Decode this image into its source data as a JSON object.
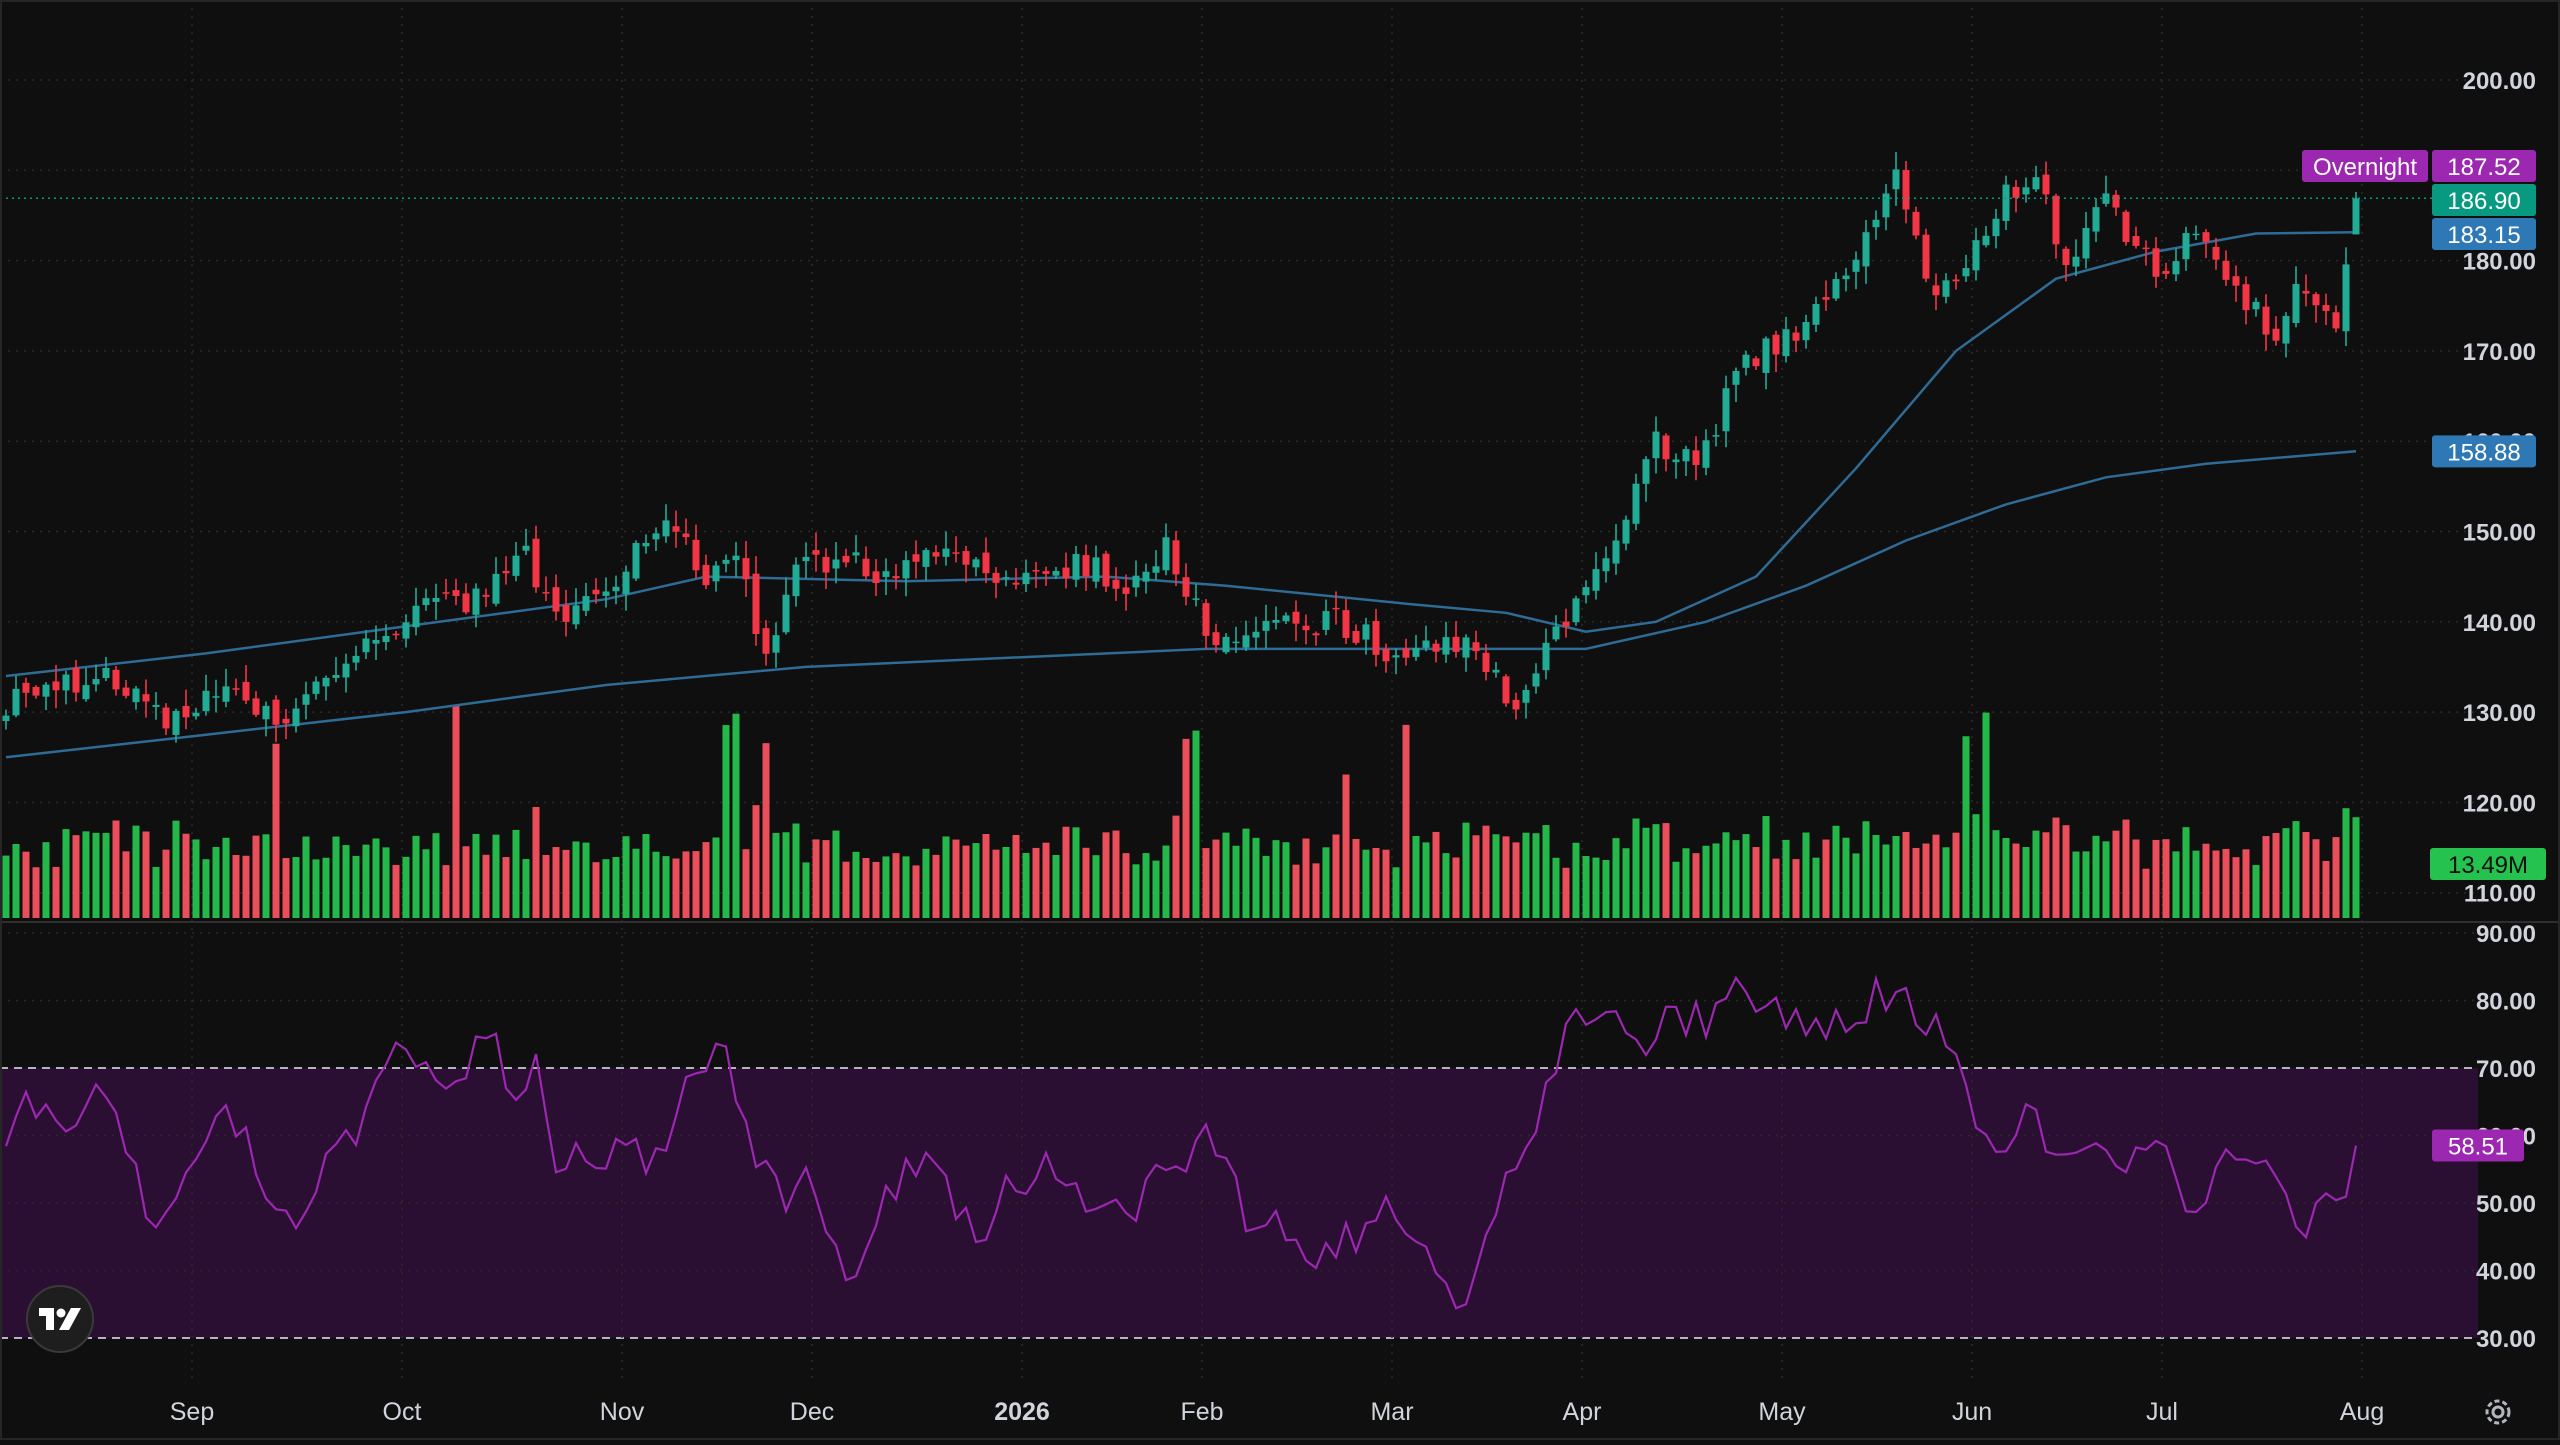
{
  "colors": {
    "background": "#0f0f0f",
    "grid": "#2a2a2a",
    "up": "#22ab94",
    "down": "#f23645",
    "volume_up": "#26c24f",
    "volume_down": "#f7525f",
    "ma_line": "#2e6b95",
    "rsi_line": "#9c27b0",
    "rsi_band": "#2a0f33",
    "axis_text": "#d1d4dc",
    "overnight_badge": "#9c27b0",
    "last_price_badge": "#089981",
    "ma_badge": "#2e79b5",
    "volume_badge": "#26c24f",
    "rsi_badge": "#9c27b0"
  },
  "icons": {
    "logo": "tradingview-logo-icon",
    "settings": "gear-icon"
  },
  "labels": {
    "overnight_tag": "Overnight",
    "overnight_price": "187.52",
    "last_price": "186.90",
    "ma_fast_value": "183.15",
    "ma_slow_value": "158.88",
    "volume_value": "13.49M",
    "rsi_value": "58.51"
  },
  "chart_data": [
    {
      "type": "candlestick",
      "date_range": [
        "2025-08-01",
        "2026-08-03"
      ],
      "x_ticks": [
        "Sep",
        "Oct",
        "Nov",
        "Dec",
        "2026",
        "Feb",
        "Mar",
        "Apr",
        "May",
        "Jun",
        "Jul",
        "Aug"
      ],
      "ylim": [
        105,
        205
      ],
      "y_ticks": [
        "110.00",
        "120.00",
        "130.00",
        "140.00",
        "150.00",
        "160.00",
        "170.00",
        "180.00",
        "190.00",
        "200.00"
      ],
      "grid": true,
      "close_anchors": [
        [
          0,
          131
        ],
        [
          8,
          134
        ],
        [
          12,
          133
        ],
        [
          16,
          129
        ],
        [
          22,
          132
        ],
        [
          28,
          129
        ],
        [
          34,
          135
        ],
        [
          40,
          141
        ],
        [
          46,
          142
        ],
        [
          52,
          147
        ],
        [
          56,
          140
        ],
        [
          61,
          144
        ],
        [
          66,
          152
        ],
        [
          70,
          145
        ],
        [
          73,
          148
        ],
        [
          76,
          136
        ],
        [
          79,
          146
        ],
        [
          84,
          147
        ],
        [
          89,
          145
        ],
        [
          94,
          148
        ],
        [
          100,
          145
        ],
        [
          104,
          146
        ],
        [
          108,
          146
        ],
        [
          113,
          144
        ],
        [
          116,
          148
        ],
        [
          120,
          139
        ],
        [
          125,
          139
        ],
        [
          129,
          140
        ],
        [
          133,
          140
        ],
        [
          138,
          137
        ],
        [
          142,
          138
        ],
        [
          147,
          137
        ],
        [
          151,
          131
        ],
        [
          156,
          140
        ],
        [
          161,
          150
        ],
        [
          165,
          160
        ],
        [
          169,
          157
        ],
        [
          173,
          167
        ],
        [
          177,
          171
        ],
        [
          181,
          174
        ],
        [
          185,
          180
        ],
        [
          189,
          190
        ],
        [
          193,
          175
        ],
        [
          197,
          181
        ],
        [
          200,
          188
        ],
        [
          203,
          189
        ],
        [
          206,
          180
        ],
        [
          210,
          187
        ],
        [
          215,
          178
        ],
        [
          219,
          183
        ],
        [
          223,
          176
        ],
        [
          227,
          172
        ],
        [
          229,
          176
        ],
        [
          231,
          176
        ],
        [
          233,
          172
        ],
        [
          235,
          186.9
        ]
      ],
      "series": [
        {
          "name": "183.15",
          "kind": "moving-average",
          "points": [
            [
              0,
              134
            ],
            [
              20,
              136.5
            ],
            [
              40,
              139.5
            ],
            [
              60,
              142.5
            ],
            [
              70,
              145
            ],
            [
              90,
              144.5
            ],
            [
              110,
              145
            ],
            [
              122,
              144
            ],
            [
              140,
              142
            ],
            [
              150,
              141
            ],
            [
              158,
              138.9
            ],
            [
              165,
              140
            ],
            [
              175,
              145
            ],
            [
              185,
              157
            ],
            [
              195,
              170
            ],
            [
              205,
              178
            ],
            [
              215,
              181
            ],
            [
              225,
              183
            ],
            [
              235,
              183.15
            ]
          ]
        },
        {
          "name": "158.88",
          "kind": "moving-average",
          "points": [
            [
              0,
              125
            ],
            [
              20,
              127.5
            ],
            [
              40,
              130
            ],
            [
              60,
              133
            ],
            [
              80,
              135
            ],
            [
              100,
              136
            ],
            [
              120,
              137
            ],
            [
              140,
              137
            ],
            [
              158,
              137
            ],
            [
              170,
              140
            ],
            [
              180,
              144
            ],
            [
              190,
              149
            ],
            [
              200,
              153
            ],
            [
              210,
              156
            ],
            [
              220,
              157.5
            ],
            [
              235,
              158.88
            ]
          ]
        },
        {
          "name": "Volume",
          "kind": "volume",
          "last": "13.49M"
        }
      ]
    },
    {
      "type": "line",
      "indicator": "RSI",
      "ylim": [
        29,
        91
      ],
      "y_ticks": [
        "30.00",
        "40.00",
        "50.00",
        "60.00",
        "70.00",
        "80.00",
        "90.00"
      ],
      "bands": [
        30,
        70
      ],
      "last": 58.51
    }
  ]
}
